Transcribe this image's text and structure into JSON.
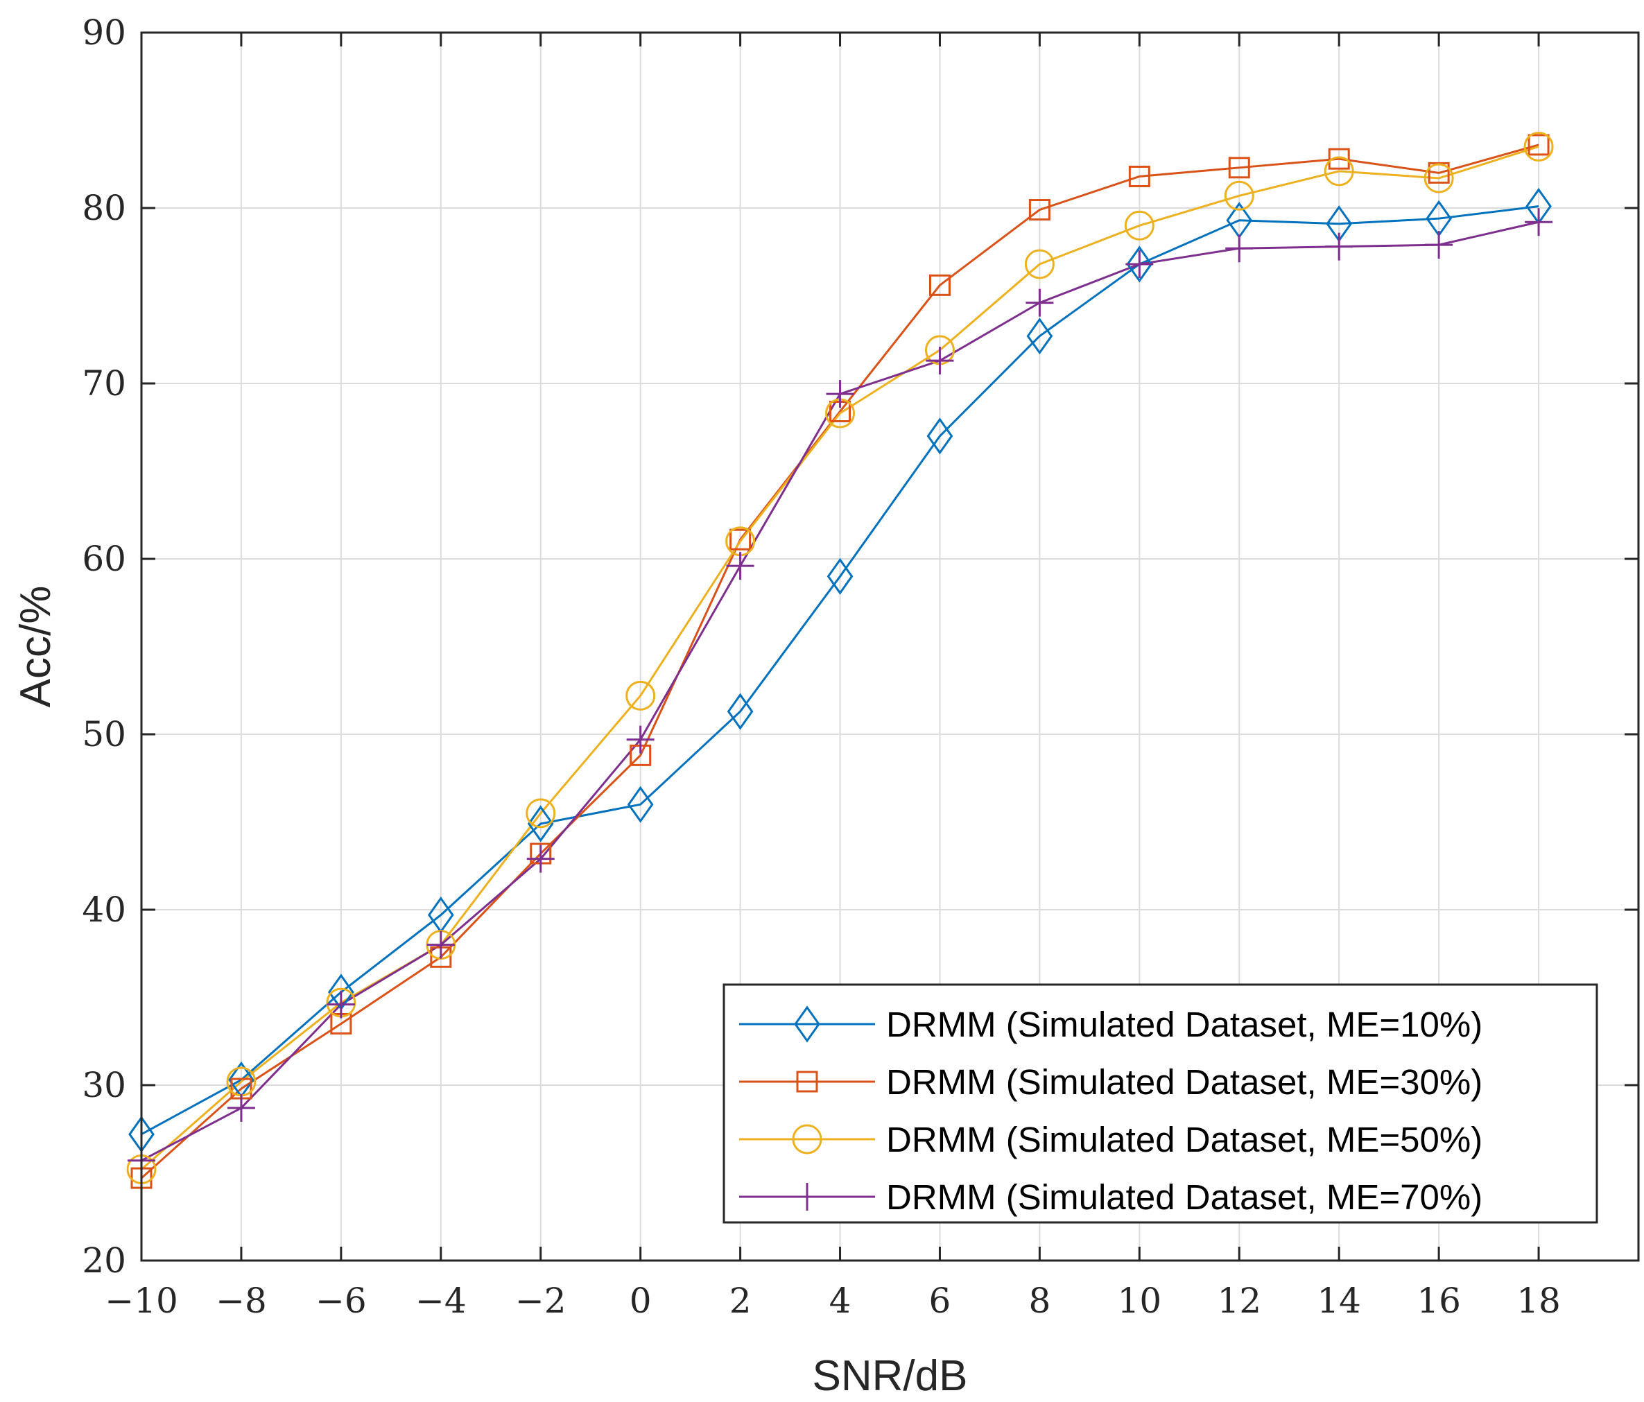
{
  "chart_data": {
    "type": "line",
    "title": "",
    "xlabel": "SNR/dB",
    "ylabel": "Acc/%",
    "xlim": [
      -10,
      20
    ],
    "ylim": [
      20,
      90
    ],
    "grid": true,
    "legend_position": "bottom-right",
    "x": [
      -10,
      -8,
      -6,
      -4,
      -2,
      0,
      2,
      4,
      6,
      8,
      10,
      12,
      14,
      16,
      18
    ],
    "x_tick_labels": [
      "−10",
      "−8",
      "−6",
      "−4",
      "−2",
      "0",
      "2",
      "4",
      "6",
      "8",
      "10",
      "12",
      "14",
      "16",
      "18"
    ],
    "y_ticks": [
      20,
      30,
      40,
      50,
      60,
      70,
      80,
      90
    ],
    "y_tick_labels": [
      "20",
      "30",
      "40",
      "50",
      "60",
      "70",
      "80",
      "90"
    ],
    "series": [
      {
        "name": "DRMM (Simulated Dataset, ME=10%)",
        "color": "#0072BD",
        "marker": "diamond",
        "values": [
          27.2,
          30.3,
          35.3,
          39.7,
          44.9,
          46.0,
          51.3,
          59.0,
          67.0,
          72.7,
          76.8,
          79.3,
          79.1,
          79.4,
          80.1
        ]
      },
      {
        "name": "DRMM (Simulated Dataset, ME=30%)",
        "color": "#D95319",
        "marker": "square",
        "values": [
          24.7,
          29.8,
          33.5,
          37.3,
          43.2,
          48.8,
          61.1,
          68.4,
          75.6,
          79.9,
          81.8,
          82.3,
          82.8,
          82.0,
          83.6
        ]
      },
      {
        "name": "DRMM (Simulated Dataset, ME=50%)",
        "color": "#EDB120",
        "marker": "circle",
        "values": [
          25.2,
          30.2,
          34.7,
          38.0,
          45.5,
          52.2,
          61.0,
          68.3,
          71.9,
          76.8,
          79.0,
          80.7,
          82.1,
          81.7,
          83.5
        ]
      },
      {
        "name": "DRMM (Simulated Dataset, ME=70%)",
        "color": "#7E2F8E",
        "marker": "plus",
        "values": [
          25.7,
          28.7,
          34.6,
          38.0,
          42.9,
          49.7,
          59.6,
          69.4,
          71.3,
          74.6,
          76.8,
          77.7,
          77.8,
          77.9,
          79.2
        ]
      }
    ]
  }
}
